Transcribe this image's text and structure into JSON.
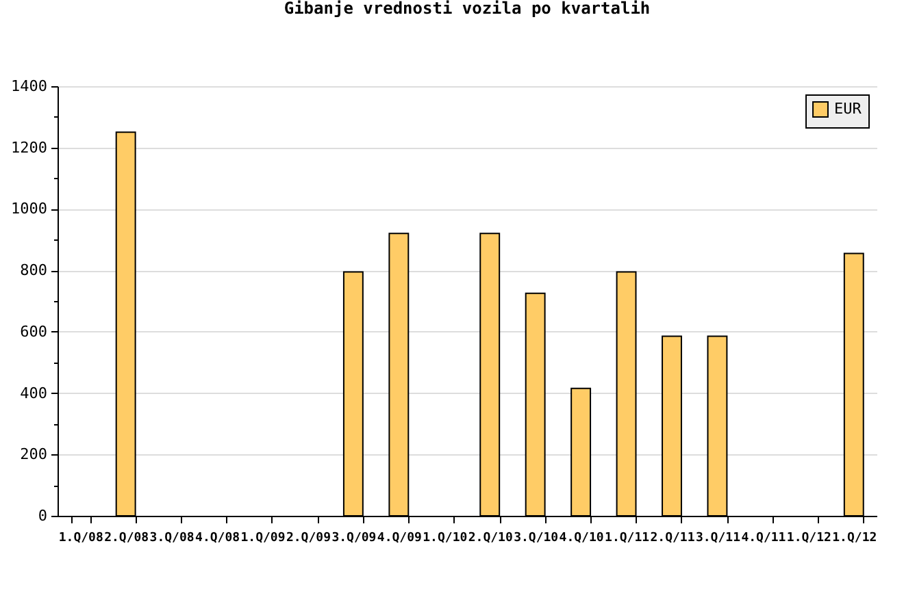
{
  "chart_data": {
    "type": "bar",
    "title": "Gibanje vrednosti vozila po kvartalih",
    "categories": [
      "1.Q/08",
      "2.Q/08",
      "3.Q/08",
      "4.Q/08",
      "1.Q/09",
      "2.Q/09",
      "3.Q/09",
      "4.Q/09",
      "1.Q/10",
      "2.Q/10",
      "3.Q/10",
      "4.Q/10",
      "1.Q/11",
      "2.Q/11",
      "3.Q/11",
      "4.Q/11",
      "1.Q/12",
      "1.Q/12"
    ],
    "series": [
      {
        "name": "EUR",
        "color": "#ffcc66",
        "values": [
          null,
          1250,
          null,
          null,
          null,
          null,
          795,
          920,
          null,
          920,
          725,
          415,
          795,
          585,
          585,
          null,
          null,
          855
        ]
      }
    ],
    "ylim": [
      0,
      1400
    ],
    "yticks": [
      0,
      {
        "value": 100,
        "label": null
      },
      200,
      {
        "value": 300,
        "label": null
      },
      400,
      {
        "value": 500,
        "label": null
      },
      600,
      {
        "value": 700,
        "label": null
      },
      800,
      {
        "value": 900,
        "label": null
      },
      1000,
      {
        "value": 1100,
        "label": null
      },
      1200,
      {
        "value": 1300,
        "label": null
      },
      1400
    ],
    "grid": "y",
    "legend": "top right"
  }
}
